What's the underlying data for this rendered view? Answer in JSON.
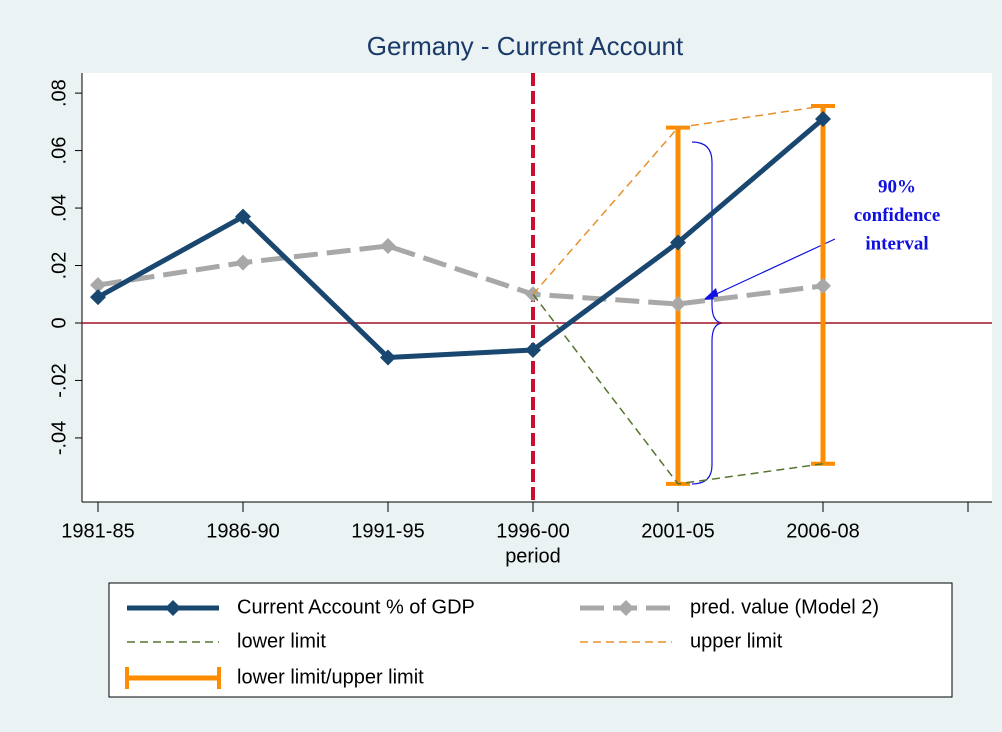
{
  "chart_data": {
    "type": "line",
    "title": "Germany - Current Account",
    "x_label": "period",
    "categories": [
      "1981-85",
      "1986-90",
      "1991-95",
      "1996-00",
      "2001-05",
      "2006-08",
      null
    ],
    "series": [
      {
        "name": "Current Account % of GDP",
        "color": "#1a476f",
        "line_style": "solid",
        "marker": "diamond",
        "values": [
          0.009,
          0.037,
          -0.012,
          -0.0094,
          0.028,
          0.071,
          null
        ]
      },
      {
        "name": "pred. value (Model 2)",
        "color": "#a8a8a8",
        "line_style": "long-dash",
        "marker": "diamond",
        "values": [
          0.0132,
          0.021,
          0.0268,
          0.01,
          0.0066,
          0.0129,
          null
        ]
      },
      {
        "name": "lower limit",
        "color": "#55752f",
        "line_style": "dashed",
        "marker": "none",
        "values": [
          null,
          null,
          null,
          0.01,
          -0.056,
          -0.049,
          null
        ]
      },
      {
        "name": "upper limit",
        "color": "#e8902a",
        "line_style": "dashed",
        "marker": "none",
        "values": [
          null,
          null,
          null,
          0.01,
          0.068,
          0.0755,
          null
        ]
      }
    ],
    "range": {
      "name": "lower limit/upper limit",
      "color": "#ff8c00",
      "low": [
        null,
        null,
        null,
        null,
        -0.056,
        -0.049,
        null
      ],
      "high": [
        null,
        null,
        null,
        null,
        0.068,
        0.0755,
        null
      ]
    },
    "ylim": [
      -0.0623,
      0.087
    ],
    "yticks": [
      {
        "value": -0.04,
        "label": "-.04"
      },
      {
        "value": -0.02,
        "label": "-.02"
      },
      0,
      {
        "value": 0.02,
        "label": ".02"
      },
      {
        "value": 0.04,
        "label": ".04"
      },
      {
        "value": 0.06,
        "label": ".06"
      },
      {
        "value": 0.08,
        "label": ".08"
      }
    ],
    "reference_lines": {
      "x": "1996-00",
      "y": 0
    },
    "annotation": [
      "90%",
      "confidence",
      "interval"
    ],
    "annotation_color": "#1010e0"
  }
}
